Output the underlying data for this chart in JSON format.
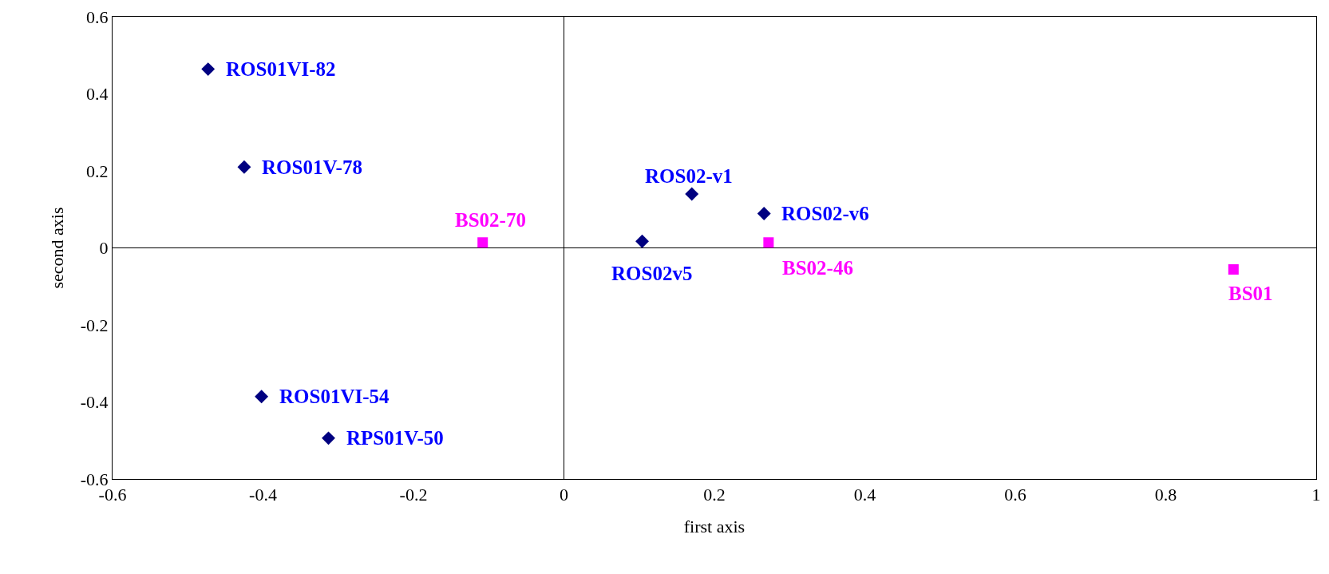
{
  "chart_data": {
    "type": "scatter",
    "xlabel": "first axis",
    "ylabel": "second axis",
    "xlim": [
      -0.6,
      1
    ],
    "xticks": [
      -0.6,
      -0.4,
      -0.2,
      0,
      0.2,
      0.4,
      0.6,
      0.8,
      1
    ],
    "ylim": [
      -0.6,
      0.6
    ],
    "yticks": [
      -0.6,
      -0.4,
      -0.2,
      0,
      0.2,
      0.4,
      0.6
    ],
    "series": [
      {
        "color": "#000080",
        "marker": "diamond",
        "x": [
          -0.473,
          -0.425,
          -0.402,
          -0.313,
          0.17,
          0.104,
          0.266
        ],
        "values": [
          0.464,
          0.21,
          -0.386,
          -0.494,
          0.14,
          0.017,
          0.089
        ]
      },
      {
        "color": "#ff00ff",
        "marker": "square",
        "x": [
          -0.108,
          0.272,
          0.89
        ],
        "values": [
          0.014,
          0.014,
          -0.056
        ]
      }
    ],
    "annotations": [
      {
        "text": "ROS01VI-82",
        "x": -0.473,
        "y": 0.464
      },
      {
        "text": "ROS01V-78",
        "x": -0.425,
        "y": 0.21
      },
      {
        "text": "ROS01VI-54",
        "x": -0.402,
        "y": -0.386
      },
      {
        "text": "RPS01V-50",
        "x": -0.313,
        "y": -0.494
      },
      {
        "text": "ROS02-v1",
        "x": 0.17,
        "y": 0.14
      },
      {
        "text": "ROS02v5",
        "x": 0.104,
        "y": 0.017
      },
      {
        "text": "ROS02-v6",
        "x": 0.266,
        "y": 0.089
      },
      {
        "text": "BS02-70",
        "x": -0.108,
        "y": 0.014
      },
      {
        "text": "BS02-46",
        "x": 0.272,
        "y": 0.014
      },
      {
        "text": "BS01",
        "x": 0.89,
        "y": -0.056
      }
    ]
  }
}
